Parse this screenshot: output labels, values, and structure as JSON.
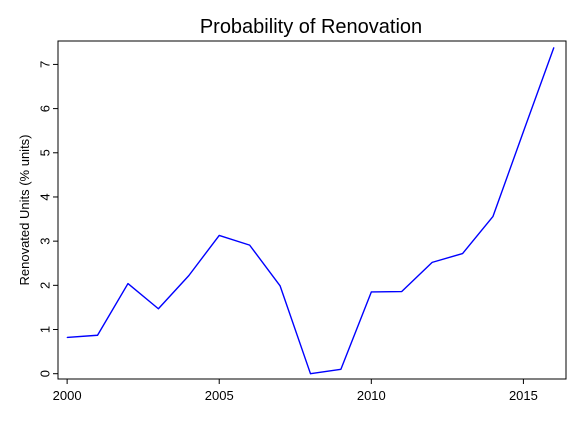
{
  "chart_data": {
    "type": "line",
    "title": "Probability of Renovation",
    "xlabel": "",
    "ylabel": "Renovated Units (% units)",
    "xlim": [
      1999.7,
      2016.4
    ],
    "ylim": [
      -0.12,
      7.53
    ],
    "x_ticks": [
      2000,
      2005,
      2010,
      2015
    ],
    "y_ticks": [
      0,
      1,
      2,
      3,
      4,
      5,
      6,
      7
    ],
    "grid": false,
    "series": [
      {
        "color": "#0000ff",
        "x": [
          2000,
          2001,
          2002,
          2003,
          2004,
          2005,
          2006,
          2007,
          2008,
          2009,
          2010,
          2011,
          2012,
          2013,
          2014,
          2015,
          2016
        ],
        "y": [
          0.82,
          0.87,
          2.04,
          1.47,
          2.22,
          3.13,
          2.91,
          1.99,
          0.0,
          0.1,
          1.85,
          1.86,
          2.52,
          2.72,
          3.56,
          5.48,
          7.38
        ]
      }
    ]
  }
}
